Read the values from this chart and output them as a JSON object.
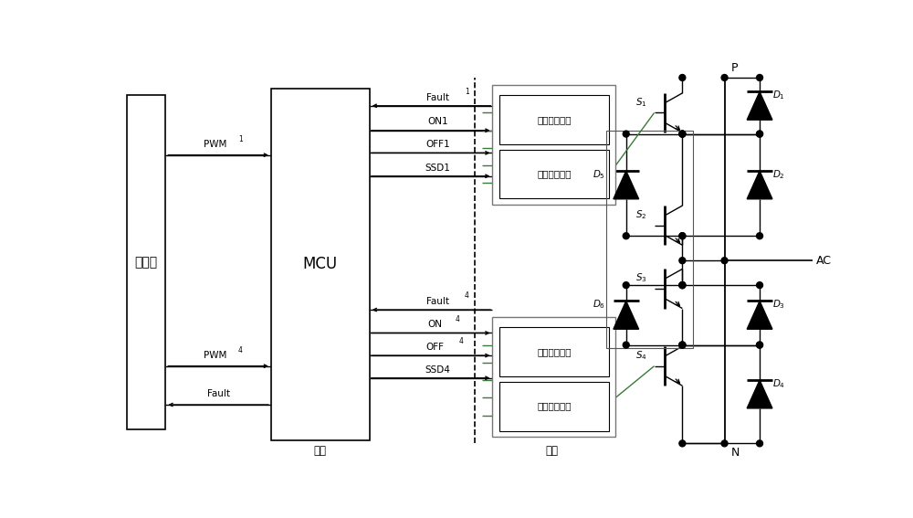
{
  "bg_color": "#ffffff",
  "lc": "#000000",
  "figsize": [
    10.0,
    5.67
  ],
  "dpi": 100,
  "xlim": [
    0,
    100
  ],
  "ylim": [
    0,
    56.7
  ],
  "shangweiji": "上位机",
  "mcu": "MCU",
  "yuanbian": "原边",
  "fubian": "副边",
  "fault_detect": "故障检测电路",
  "push_amp": "推挝放大电路",
  "P": "P",
  "N": "N",
  "AC": "AC",
  "Fault1": "Fault",
  "ON1": "ON1",
  "OFF1": "OFF1",
  "SSD1": "SSD1",
  "Fault4": "Fault",
  "ON4": "ON",
  "OFF4": "OFF",
  "SSD4": "SSD4",
  "PWM1": "PWM",
  "PWM4": "PWM",
  "Fault_bot": "Fault",
  "green": "#3a7a3a"
}
